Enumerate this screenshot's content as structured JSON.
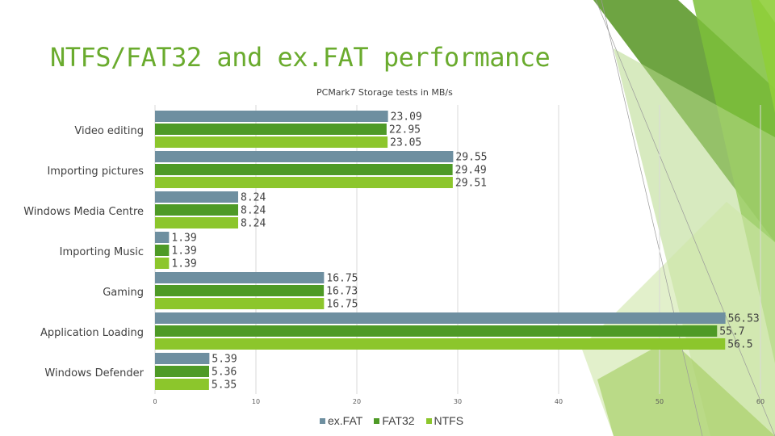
{
  "slide": {
    "title": "NTFS/FAT32 and ex.FAT performance"
  },
  "colors": {
    "title": "#6aab2e",
    "grid": "#d9d9d9",
    "text": "#404040"
  },
  "chart_data": {
    "type": "bar",
    "orientation": "horizontal",
    "title": "PCMark7 Storage tests in MB/s",
    "xlabel": "",
    "ylabel": "",
    "xlim": [
      0,
      60
    ],
    "xticks": [
      0,
      10,
      20,
      30,
      40,
      50,
      60
    ],
    "grid": true,
    "legend_position": "bottom",
    "categories": [
      "Video editing",
      "Importing pictures",
      "Windows Media Centre",
      "Importing Music",
      "Gaming",
      "Application Loading",
      "Windows Defender"
    ],
    "series": [
      {
        "name": "ex.FAT",
        "color": "#6e8fa0",
        "values": [
          23.09,
          29.55,
          8.24,
          1.39,
          16.75,
          56.53,
          5.39
        ],
        "labels": [
          "23.09",
          "29.55",
          "8.24",
          "1.39",
          "16.75",
          "56.53",
          "5.39"
        ]
      },
      {
        "name": "FAT32",
        "color": "#4e9a26",
        "values": [
          22.95,
          29.49,
          8.24,
          1.39,
          16.73,
          55.7,
          5.36
        ],
        "labels": [
          "22.95",
          "29.49",
          "8.24",
          "1.39",
          "16.73",
          "55.7",
          "5.36"
        ]
      },
      {
        "name": "NTFS",
        "color": "#8cc62c",
        "values": [
          23.05,
          29.51,
          8.24,
          1.39,
          16.75,
          56.5,
          5.35
        ],
        "labels": [
          "23.05",
          "29.51",
          "8.24",
          "1.39",
          "16.75",
          "56.5",
          "5.35"
        ]
      }
    ]
  }
}
